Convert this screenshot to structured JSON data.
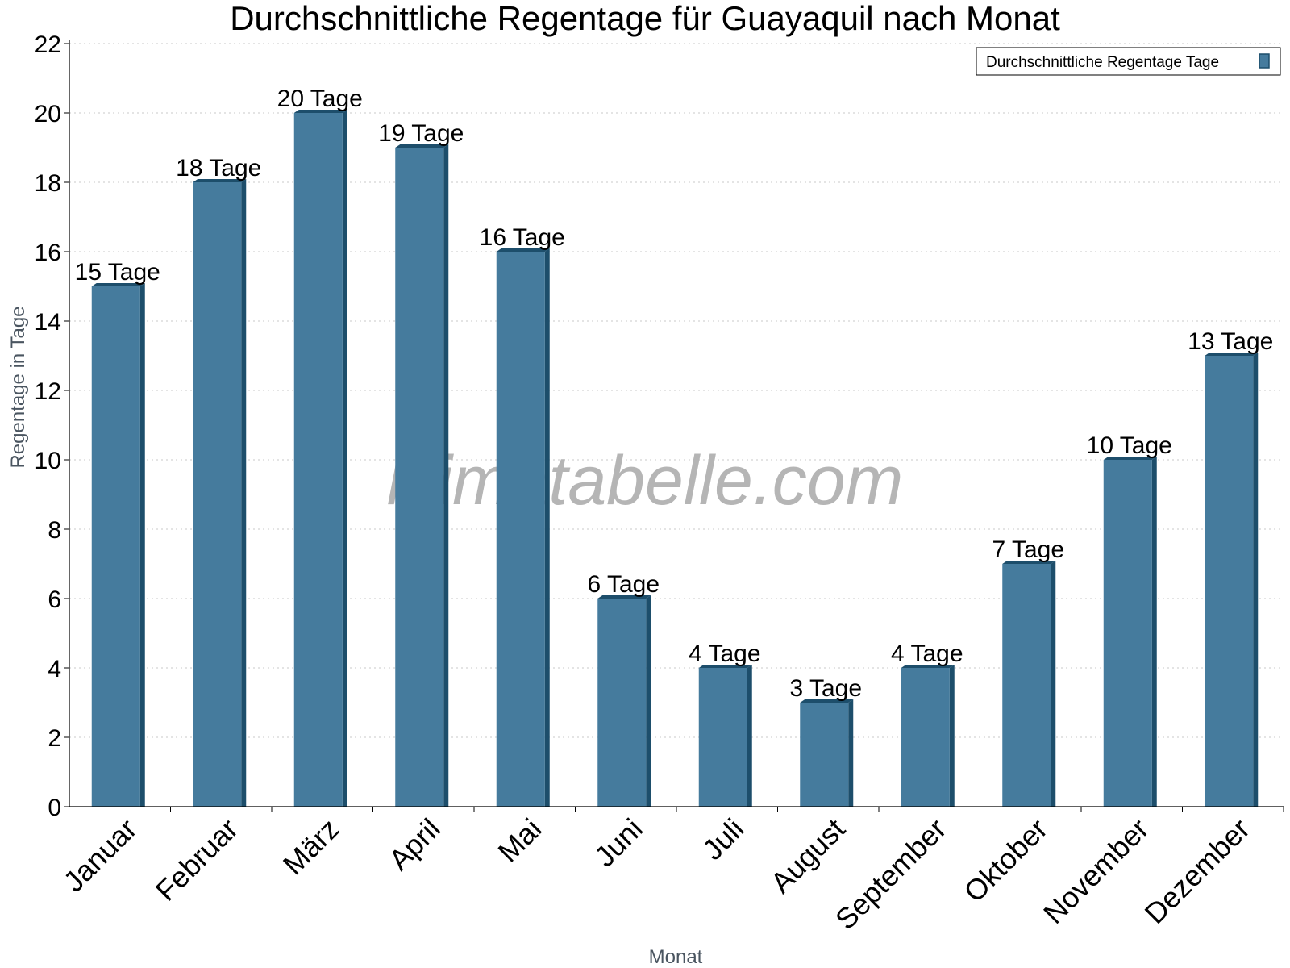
{
  "chart_data": {
    "type": "bar",
    "title": "Durchschnittliche Regentage für Guayaquil nach Monat",
    "xlabel": "Monat",
    "ylabel": "Regentage in Tage",
    "ylim": [
      0,
      22
    ],
    "yticks": [
      0,
      2,
      4,
      6,
      8,
      10,
      12,
      14,
      16,
      18,
      20,
      22
    ],
    "grid": "horizontal dotted",
    "legend_position": "top-right",
    "categories": [
      "Januar",
      "Februar",
      "März",
      "April",
      "Mai",
      "Juni",
      "Juli",
      "August",
      "September",
      "Oktober",
      "November",
      "Dezember"
    ],
    "series": [
      {
        "name": "Durchschnittliche Regentage Tage",
        "values": [
          15,
          18,
          20,
          19,
          16,
          6,
          4,
          3,
          4,
          7,
          10,
          13
        ],
        "data_labels": [
          "15 Tage",
          "18 Tage",
          "20 Tage",
          "19 Tage",
          "16 Tage",
          "6 Tage",
          "4 Tage",
          "3 Tage",
          "4 Tage",
          "7 Tage",
          "10 Tage",
          "13 Tage"
        ]
      }
    ],
    "colors": {
      "bar_front": "#457b9d",
      "bar_side": "#1d4e6b",
      "bar_top": "#1d4e6b"
    },
    "watermark": "klimatabelle.com"
  }
}
